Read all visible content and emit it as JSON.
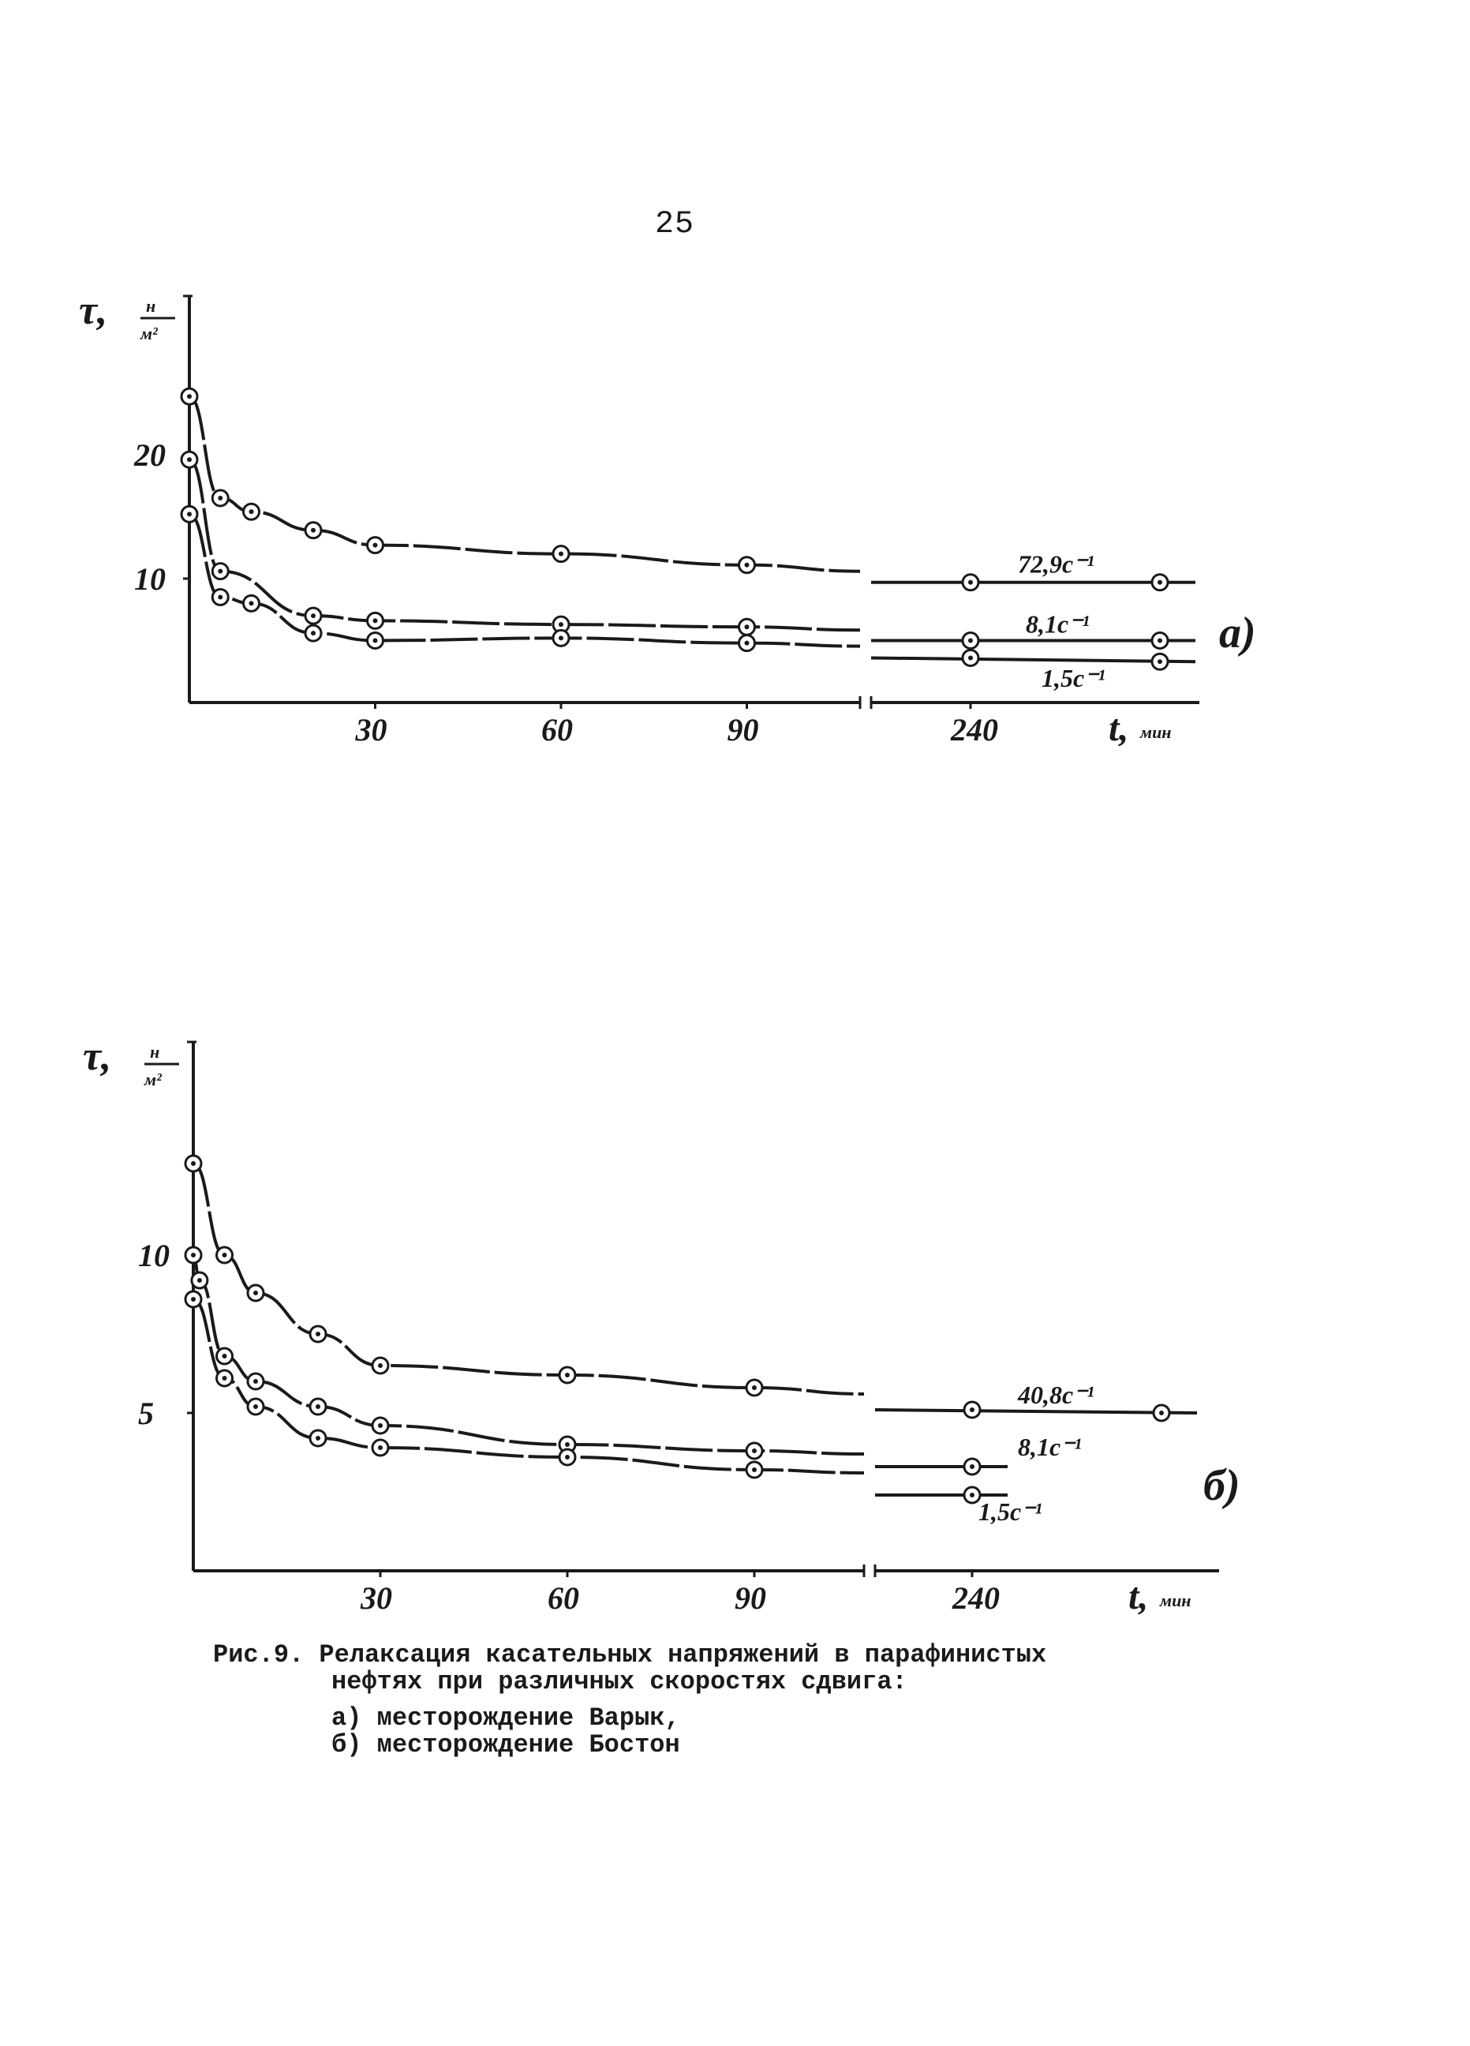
{
  "page_number": "25",
  "chart_data": [
    {
      "type": "line",
      "panel_label": "а)",
      "ylabel": "τ, н/м²",
      "ylabel_symbol": "τ",
      "ylabel_unit_num": "н",
      "ylabel_unit_den": "м²",
      "xlabel": "t, мин",
      "xlabel_symbol": "t",
      "xlabel_unit": "мин",
      "x_ticks": [
        "30",
        "60",
        "90",
        "240"
      ],
      "y_ticks": [
        "20",
        "10"
      ],
      "ylim": [
        0,
        30
      ],
      "x_axis": "broken",
      "series": [
        {
          "name": "72,9с⁻¹",
          "x": [
            0,
            5,
            10,
            20,
            30,
            60,
            90,
            240,
            270
          ],
          "y": [
            24.7,
            16.5,
            15.4,
            13.9,
            12.7,
            12.0,
            11.1,
            9.7,
            9.7
          ]
        },
        {
          "name": "8,1с⁻¹",
          "x": [
            0,
            5,
            20,
            30,
            60,
            90,
            240,
            270
          ],
          "y": [
            19.6,
            10.6,
            7.0,
            6.6,
            6.3,
            6.1,
            5.0,
            5.0
          ]
        },
        {
          "name": "1,5с⁻¹",
          "x": [
            0,
            5,
            10,
            20,
            30,
            60,
            90,
            240,
            270
          ],
          "y": [
            15.2,
            8.5,
            8.0,
            5.6,
            5.0,
            5.2,
            4.8,
            3.6,
            3.3
          ]
        }
      ]
    },
    {
      "type": "line",
      "panel_label": "б)",
      "ylabel": "τ, н/м²",
      "ylabel_symbol": "τ",
      "ylabel_unit_num": "н",
      "ylabel_unit_den": "м²",
      "xlabel": "t, мин",
      "xlabel_symbol": "t",
      "xlabel_unit": "мин",
      "x_ticks": [
        "30",
        "60",
        "90",
        "240"
      ],
      "y_ticks": [
        "10",
        "5"
      ],
      "ylim": [
        0,
        14
      ],
      "x_axis": "broken",
      "series": [
        {
          "name": "40,8с⁻¹",
          "x": [
            0,
            5,
            10,
            20,
            30,
            60,
            90,
            240,
            270
          ],
          "y": [
            12.9,
            10.0,
            8.8,
            7.5,
            6.5,
            6.2,
            5.8,
            5.1,
            5.0
          ]
        },
        {
          "name": "8,1с⁻¹",
          "x": [
            0,
            1,
            5,
            10,
            20,
            30,
            60,
            90,
            240
          ],
          "y": [
            10.0,
            9.2,
            6.8,
            6.0,
            5.2,
            4.6,
            4.0,
            3.8,
            3.3
          ]
        },
        {
          "name": "1,5с⁻¹",
          "x": [
            0,
            5,
            10,
            20,
            30,
            60,
            90,
            240
          ],
          "y": [
            8.6,
            6.1,
            5.2,
            4.2,
            3.9,
            3.6,
            3.2,
            2.4
          ]
        }
      ]
    }
  ],
  "caption": {
    "line1": "Рис.9. Релаксация касательных напряжений в парафинистых",
    "line2": "нефтях при различных скоростях сдвига:",
    "line3": "а) месторождение Варык,",
    "line4": "б) месторождение Бостон"
  }
}
